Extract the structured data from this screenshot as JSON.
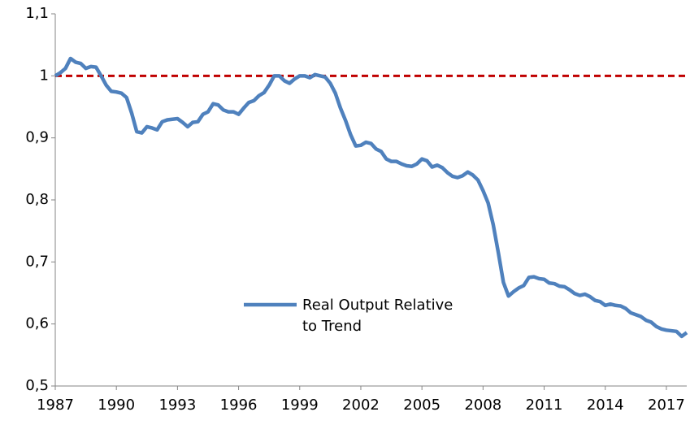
{
  "chart_data": {
    "type": "line",
    "x": [
      1987,
      1987.25,
      1987.5,
      1987.75,
      1988,
      1988.25,
      1988.5,
      1988.75,
      1989,
      1989.25,
      1989.5,
      1989.75,
      1990,
      1990.25,
      1990.5,
      1990.75,
      1991,
      1991.25,
      1991.5,
      1991.75,
      1992,
      1992.25,
      1992.5,
      1992.75,
      1993,
      1993.25,
      1993.5,
      1993.75,
      1994,
      1994.25,
      1994.5,
      1994.75,
      1995,
      1995.25,
      1995.5,
      1995.75,
      1996,
      1996.25,
      1996.5,
      1996.75,
      1997,
      1997.25,
      1997.5,
      1997.75,
      1998,
      1998.25,
      1998.5,
      1998.75,
      1999,
      1999.25,
      1999.5,
      1999.75,
      2000,
      2000.25,
      2000.5,
      2000.75,
      2001,
      2001.25,
      2001.5,
      2001.75,
      2002,
      2002.25,
      2002.5,
      2002.75,
      2003,
      2003.25,
      2003.5,
      2003.75,
      2004,
      2004.25,
      2004.5,
      2004.75,
      2005,
      2005.25,
      2005.5,
      2005.75,
      2006,
      2006.25,
      2006.5,
      2006.75,
      2007,
      2007.25,
      2007.5,
      2007.75,
      2008,
      2008.25,
      2008.5,
      2008.75,
      2009,
      2009.25,
      2009.5,
      2009.75,
      2010,
      2010.25,
      2010.5,
      2010.75,
      2011,
      2011.25,
      2011.5,
      2011.75,
      2012,
      2012.25,
      2012.5,
      2012.75,
      2013,
      2013.25,
      2013.5,
      2013.75,
      2014,
      2014.25,
      2014.5,
      2014.75,
      2015,
      2015.25,
      2015.5,
      2015.75,
      2016,
      2016.25,
      2016.5,
      2016.75,
      2017,
      2017.25,
      2017.5,
      2017.75,
      2018
    ],
    "series": [
      {
        "name": "Real Output Relative to Trend",
        "color": "#4f81bd",
        "values": [
          1.0,
          1.005,
          1.012,
          1.028,
          1.022,
          1.02,
          1.012,
          1.015,
          1.014,
          1.0,
          0.985,
          0.975,
          0.974,
          0.972,
          0.965,
          0.94,
          0.91,
          0.908,
          0.918,
          0.916,
          0.913,
          0.926,
          0.929,
          0.93,
          0.931,
          0.925,
          0.918,
          0.925,
          0.926,
          0.938,
          0.942,
          0.955,
          0.953,
          0.945,
          0.942,
          0.942,
          0.938,
          0.948,
          0.957,
          0.96,
          0.968,
          0.973,
          0.985,
          1.0,
          1.0,
          0.992,
          0.988,
          0.995,
          1.0,
          1.0,
          0.997,
          1.002,
          1.0,
          0.998,
          0.988,
          0.972,
          0.948,
          0.928,
          0.905,
          0.887,
          0.888,
          0.893,
          0.891,
          0.882,
          0.878,
          0.866,
          0.862,
          0.862,
          0.858,
          0.855,
          0.854,
          0.858,
          0.866,
          0.863,
          0.853,
          0.856,
          0.852,
          0.844,
          0.838,
          0.836,
          0.839,
          0.845,
          0.84,
          0.832,
          0.815,
          0.795,
          0.76,
          0.715,
          0.667,
          0.645,
          0.652,
          0.658,
          0.662,
          0.675,
          0.676,
          0.673,
          0.672,
          0.666,
          0.665,
          0.661,
          0.66,
          0.655,
          0.649,
          0.646,
          0.648,
          0.644,
          0.638,
          0.636,
          0.63,
          0.632,
          0.63,
          0.629,
          0.625,
          0.618,
          0.615,
          0.612,
          0.606,
          0.603,
          0.596,
          0.592,
          0.59,
          0.589,
          0.588,
          0.58,
          0.586
        ]
      }
    ],
    "reference_line": {
      "value": 1,
      "color": "#c00000"
    },
    "xlim": [
      1987,
      2018
    ],
    "xticks": [
      1987,
      1990,
      1993,
      1996,
      1999,
      2002,
      2005,
      2008,
      2011,
      2014,
      2017
    ],
    "ylim": [
      0.5,
      1.1
    ],
    "yticks": [
      {
        "value": 0.5,
        "label": "0,5"
      },
      {
        "value": 0.6,
        "label": "0,6"
      },
      {
        "value": 0.7,
        "label": "0,7"
      },
      {
        "value": 0.8,
        "label": "0,8"
      },
      {
        "value": 0.9,
        "label": "0,9"
      },
      1,
      {
        "value": 1.1,
        "label": "1,1"
      }
    ]
  }
}
